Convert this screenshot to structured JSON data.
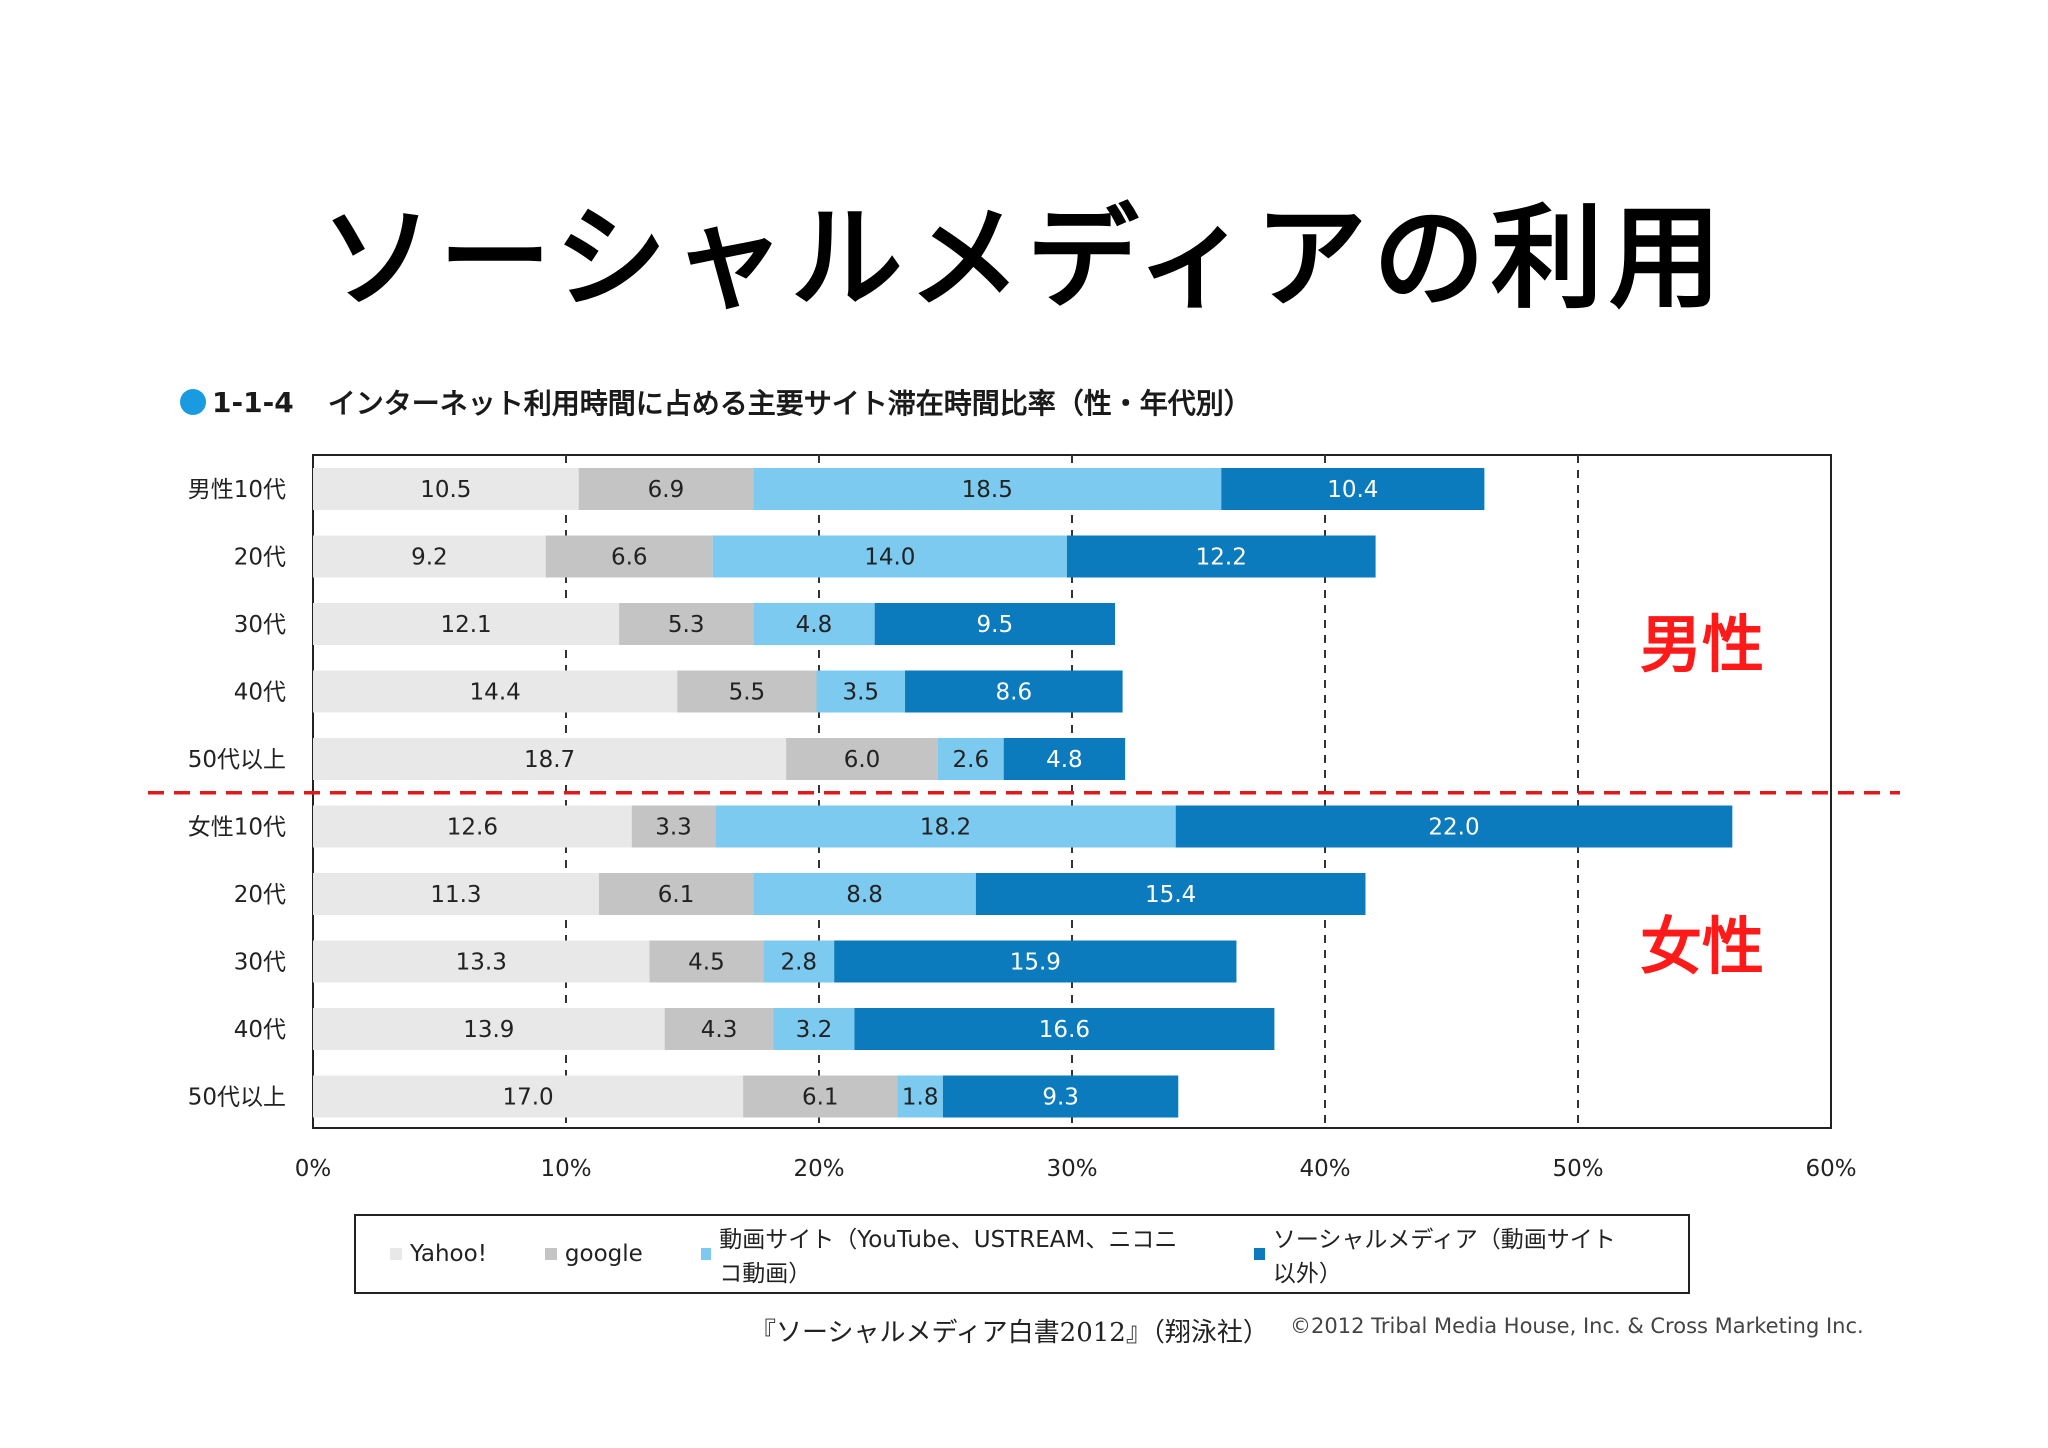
{
  "slide": {
    "title": "ソーシャルメディアの利用"
  },
  "chart_header": {
    "code": "1-1-4",
    "title": "インターネット利用時間に占める主要サイト滞在時間比率（性・年代別）"
  },
  "chart_data": {
    "type": "bar",
    "orientation": "horizontal",
    "stacked": true,
    "categories": [
      "男性10代",
      "20代",
      "30代",
      "40代",
      "50代以上",
      "女性10代",
      "20代",
      "30代",
      "40代",
      "50代以上"
    ],
    "series": [
      {
        "name": "Yahoo!",
        "color": "#e8e8e8",
        "label_color": "#222222",
        "values": [
          10.5,
          9.2,
          12.1,
          14.4,
          18.7,
          12.6,
          11.3,
          13.3,
          13.9,
          17.0
        ]
      },
      {
        "name": "google",
        "color": "#c4c4c4",
        "label_color": "#222222",
        "values": [
          6.9,
          6.6,
          5.3,
          5.5,
          6.0,
          3.3,
          6.1,
          4.5,
          4.3,
          6.1
        ]
      },
      {
        "name": "動画サイト（YouTube、USTREAM、ニコニコ動画）",
        "color": "#7ccaef",
        "label_color": "#222222",
        "values": [
          18.5,
          14.0,
          4.8,
          3.5,
          2.6,
          18.2,
          8.8,
          2.8,
          3.2,
          1.8
        ]
      },
      {
        "name": "ソーシャルメディア（動画サイト以外）",
        "color": "#0b7bbd",
        "label_color": "#ffffff",
        "values": [
          10.4,
          12.2,
          9.5,
          8.6,
          4.8,
          22.0,
          15.4,
          15.9,
          16.6,
          9.3
        ]
      }
    ],
    "xlim": [
      0,
      60
    ],
    "x_ticks": [
      "0%",
      "10%",
      "20%",
      "30%",
      "40%",
      "50%",
      "60%"
    ],
    "grid": "dashed vertical",
    "legend_position": "bottom",
    "annotations": [
      "男性",
      "女性"
    ],
    "annotation_color": "#ff1a1a",
    "divider_color": "#e01a1a"
  },
  "source": "『ソーシャルメディア白書2012』（翔泳社）",
  "copyright": "©2012 Tribal Media House, Inc. & Cross Marketing Inc."
}
